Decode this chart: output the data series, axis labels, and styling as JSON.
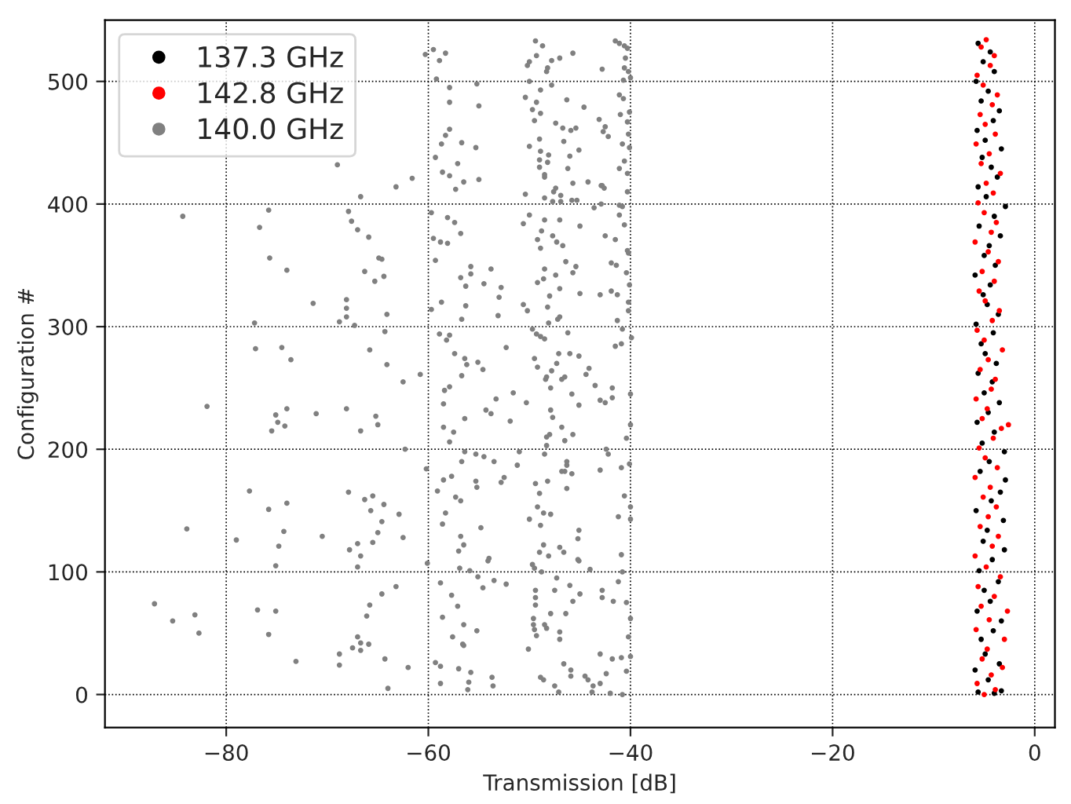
{
  "chart_data": {
    "type": "scatter",
    "xlabel": "Transmission [dB]",
    "ylabel": "Configuration #",
    "xlim": [
      -92,
      2
    ],
    "ylim": [
      -27,
      550
    ],
    "xticks": [
      {
        "value": -80,
        "label": "−80"
      },
      {
        "value": -60,
        "label": "−60"
      },
      {
        "value": -40,
        "label": "−40"
      },
      {
        "value": -20,
        "label": "−20"
      },
      {
        "value": 0,
        "label": "0"
      }
    ],
    "yticks": [
      0,
      100,
      200,
      300,
      400,
      500
    ],
    "grid": true,
    "legend": "top left",
    "marker": "circle",
    "series": [
      {
        "name": "137.3 GHz",
        "color": "#000000",
        "x": [
          -5.6,
          -4.0,
          -3.3,
          -4.6,
          -5.9,
          -3.5,
          -4.9,
          -5.3,
          -4.1,
          -3.3,
          -5.7,
          -4.4,
          -5.0,
          -3.6,
          -5.5,
          -4.2,
          -3.0,
          -5.1,
          -4.7,
          -3.1,
          -5.8,
          -4.3,
          -3.4,
          -2.9,
          -5.4,
          -4.5,
          -3.0,
          -5.2,
          -4.0,
          -5.7,
          -4.6,
          -3.5,
          -5.0,
          -4.2,
          -5.6,
          -3.8,
          -4.9,
          -5.3,
          -4.1,
          -5.8,
          -3.6,
          -4.7,
          -5.1,
          -4.4,
          -5.9,
          -3.9,
          -5.0,
          -4.5,
          -3.4,
          -5.5,
          -4.0,
          -2.9,
          -4.8,
          -5.6,
          -3.7,
          -4.3,
          -5.2,
          -3.3,
          -4.9,
          -5.7,
          -4.1,
          -3.5,
          -5.3,
          -4.6,
          -5.8,
          -4.0,
          -5.1,
          -4.4,
          -5.6
        ],
        "values": [
          2,
          1,
          3,
          12,
          20,
          25,
          33,
          45,
          52,
          60,
          68,
          76,
          85,
          92,
          101,
          110,
          118,
          125,
          134,
          142,
          150,
          158,
          165,
          175,
          182,
          190,
          198,
          205,
          214,
          222,
          230,
          238,
          246,
          255,
          262,
          270,
          278,
          286,
          295,
          302,
          310,
          318,
          326,
          334,
          342,
          350,
          358,
          366,
          374,
          382,
          390,
          398,
          406,
          414,
          422,
          430,
          438,
          445,
          452,
          460,
          468,
          476,
          484,
          492,
          500,
          508,
          516,
          524,
          531
        ]
      },
      {
        "name": "142.8 GHz",
        "color": "#ff0000",
        "x": [
          -5.0,
          -3.9,
          -5.7,
          -4.3,
          -3.2,
          -5.2,
          -4.7,
          -3.0,
          -5.8,
          -4.5,
          -2.7,
          -5.3,
          -4.0,
          -5.6,
          -3.4,
          -4.8,
          -5.9,
          -4.2,
          -3.6,
          -5.4,
          -4.6,
          -3.8,
          -5.1,
          -4.4,
          -5.9,
          -3.7,
          -4.9,
          -5.5,
          -4.1,
          -3.3,
          -5.2,
          -4.7,
          -2.6,
          -5.8,
          -4.3,
          -3.9,
          -5.4,
          -4.6,
          -3.2,
          -5.0,
          -5.7,
          -4.2,
          -3.5,
          -4.9,
          -5.5,
          -4.0,
          -5.2,
          -3.6,
          -4.6,
          -5.9,
          -4.3,
          -3.8,
          -5.0,
          -5.6,
          -4.1,
          -4.8,
          -3.4,
          -5.3,
          -4.5,
          -5.8,
          -3.9,
          -4.9,
          -5.4,
          -4.2,
          -3.7,
          -5.1,
          -5.7,
          -4.4,
          -4.0,
          -5.3,
          -4.8
        ],
        "values": [
          0,
          4,
          9,
          16,
          22,
          29,
          37,
          45,
          53,
          61,
          68,
          72,
          80,
          88,
          96,
          104,
          113,
          121,
          129,
          137,
          145,
          153,
          161,
          169,
          177,
          185,
          193,
          201,
          209,
          217,
          225,
          233,
          220,
          241,
          249,
          257,
          265,
          273,
          281,
          289,
          297,
          305,
          313,
          321,
          329,
          337,
          345,
          353,
          361,
          369,
          377,
          385,
          393,
          401,
          409,
          417,
          425,
          433,
          441,
          449,
          457,
          465,
          473,
          481,
          489,
          497,
          505,
          513,
          521,
          528,
          534
        ]
      },
      {
        "name": "140.0 GHz",
        "color": "#808080",
        "x": [
          -87.1,
          -85.3,
          -83.1,
          -82.7,
          -83.9,
          -81.9,
          -84.3,
          -77.2,
          -77.1,
          -75.8,
          -76.7,
          -75.7,
          -74.0,
          -74.5,
          -73.6,
          -75.1,
          -74.9,
          -75.5,
          -74.2,
          -74.0,
          -71.1,
          -68.1,
          -65.2,
          -65.0,
          -66.7,
          -62.3,
          -77.7,
          -75.8,
          -74.0,
          -79.0,
          -74.3,
          -74.8,
          -75.1,
          -70.5,
          -67.9,
          -66.3,
          -65.5,
          -65.7,
          -64.4,
          -64.6,
          -65.0,
          -65.5,
          -67.0,
          -67.8,
          -66.7,
          -67.0,
          -62.9,
          -62.5,
          -76.9,
          -75.1,
          -75.8,
          -73.1,
          -68.8,
          -68.8,
          -67.5,
          -66.7,
          -65.9,
          -66.7,
          -67.0,
          -66.1,
          -65.8,
          -64.6,
          -63.2,
          -64.3,
          -64.0,
          -62.0,
          -69.0,
          -66.7,
          -63.2,
          -61.6,
          -67.9,
          -67.6,
          -67.0,
          -65.9,
          -64.9,
          -64.6,
          -66.3,
          -65.3,
          -64.4,
          -68.1,
          -68.1,
          -68.1,
          -68.8,
          -67.3,
          -64.1,
          -64.3,
          -71.4,
          -65.8,
          -64.1,
          -62.5,
          -60.8,
          -60.3,
          -59.5,
          -58.9,
          -58.3,
          -59.2,
          -57.9,
          -57.9,
          -55.2,
          -55.0,
          -57.9,
          -58.3,
          -58.7,
          -59.3,
          -56.7,
          -55.3,
          -58.6,
          -57.9,
          -57.1,
          -57.3,
          -56.5,
          -55.0,
          -59.7,
          -58.1,
          -57.4,
          -56.8,
          -59.5,
          -58.8,
          -58.1,
          -59.3,
          -55.8,
          -55.8,
          -56.8,
          -56.3,
          -54.5,
          -53.8,
          -52.8,
          -53.0,
          -56.3,
          -56.7,
          -53.1,
          -59.7,
          -58.7,
          -58.9,
          -57.9,
          -58.2,
          -57.4,
          -56.4,
          -56.2,
          -55.1,
          -54.6,
          -56.7,
          -52.3,
          -57.9,
          -58.4,
          -58.5,
          -53.3,
          -54.3,
          -53.8,
          -56.4,
          -58.5,
          -57.5,
          -57.9,
          -51.9,
          -51.6,
          -50.3,
          -56.4,
          -55.3,
          -54.5,
          -53.5,
          -56.7,
          -60.2,
          -58.5,
          -57.7,
          -55.3,
          -55.2,
          -52.8,
          -52.5,
          -51.2,
          -51.0,
          -59.1,
          -57.3,
          -56.8,
          -58.3,
          -58.6,
          -54.8,
          -56.8,
          -56.5,
          -57.0,
          -54.0,
          -54.1,
          -60.1,
          -56.9,
          -55.9,
          -55.1,
          -54.6,
          -53.5,
          -52.3,
          -58.8,
          -57.7,
          -57.1,
          -58.6,
          -56.5,
          -57.6,
          -55.2,
          -56.6,
          -56.5,
          -59.3,
          -58.8,
          -57.0,
          -55.8,
          -58.8,
          -56.0,
          -56.1,
          -53.7,
          -53.6,
          -49.4,
          -48.7,
          -49.3,
          -50.0,
          -50.2,
          -48.2,
          -48.3,
          -47.8,
          -47.0,
          -45.7,
          -50.0,
          -48.9,
          -47.8,
          -50.4,
          -49.3,
          -49.7,
          -48.9,
          -49.5,
          -47.4,
          -46.7,
          -46.3,
          -44.6,
          -45.9,
          -45.4,
          -50.0,
          -49.0,
          -46.6,
          -45.1,
          -48.9,
          -48.1,
          -49.0,
          -48.2,
          -46.0,
          -49.0,
          -48.5,
          -48.5,
          -46.2,
          -45.7,
          -47.4,
          -47.6,
          -50.4,
          -46.9,
          -48.5,
          -47.7,
          -46.9,
          -45.8,
          -45.3,
          -44.2,
          -42.9,
          -42.6,
          -50.6,
          -50.0,
          -48.5,
          -47.0,
          -49.2,
          -48.8,
          -48.9,
          -47.7,
          -47.3,
          -46.7,
          -45.0,
          -48.5,
          -48.6,
          -49.2,
          -47.4,
          -46.4,
          -45.7,
          -45.4,
          -47.0,
          -48.0,
          -48.2,
          -50.6,
          -50.2,
          -47.2,
          -47.0,
          -48.1,
          -45.0,
          -46.2,
          -49.7,
          -49.3,
          -48.9,
          -48.5,
          -49.5,
          -49.2,
          -48.4,
          -48.3,
          -47.8,
          -47.3,
          -47.1,
          -46.8,
          -46.5,
          -47.9,
          -46.0,
          -45.1,
          -44.4,
          -44.1,
          -45.8,
          -45.1,
          -47.9,
          -47.7,
          -46.8,
          -48.0,
          -48.3,
          -48.3,
          -45.7,
          -46.5,
          -48.5,
          -46.3,
          -46.3,
          -46.5,
          -46.8,
          -45.8,
          -48.2,
          -49.4,
          -46.3,
          -49.0,
          -49.2,
          -48.6,
          -47.9,
          -50.0,
          -48.9,
          -45.1,
          -45.2,
          -48.6,
          -49.0,
          -48.1,
          -47.0,
          -46.6,
          -45.2,
          -45.1,
          -49.7,
          -49.5,
          -48.8,
          -47.3,
          -46.0,
          -49.4,
          -49.4,
          -47.5,
          -45.7,
          -45.0,
          -49.4,
          -49.6,
          -49.6,
          -48.5,
          -47.9,
          -46.4,
          -47.0,
          -49.5,
          -48.3,
          -49.3,
          -50.1,
          -47.0,
          -46.6,
          -45.9,
          -45.9,
          -48.9,
          -48.6,
          -47.5,
          -47.1,
          -44.5,
          -44.2,
          -43.7,
          -43.8,
          -43.0,
          -42.0,
          -43.0,
          -41.8,
          -41.5,
          -41.1,
          -40.6,
          -40.3,
          -40.5,
          -40.6,
          -40.2,
          -40.0,
          -40.7,
          -42.8,
          -41.1,
          -40.7,
          -41.0,
          -40.1,
          -40.3,
          -43.1,
          -42.5,
          -42.7,
          -42.2,
          -40.2,
          -40.8,
          -40.1,
          -40.6,
          -41.1,
          -40.3,
          -40.3,
          -42.8,
          -41.1,
          -40.8,
          -43.6,
          -42.9,
          -41.1,
          -40.6,
          -42.5,
          -41.5,
          -40.3,
          -40.2,
          -41.9,
          -41.4,
          -40.4,
          -40.1,
          -41.9,
          -41.3,
          -43.0,
          -40.2,
          -40.2,
          -41.3,
          -40.8,
          -40.9,
          -41.5,
          -39.9,
          -40.0,
          -41.8,
          -41.8,
          -43.0,
          -42.5,
          -43.5,
          -40.4,
          -40.0,
          -42.4,
          -42.2,
          -40.9,
          -40.1,
          -43.0,
          -40.6,
          -40.0,
          -41.2,
          -40.0,
          -40.9,
          -41.2,
          -40.8,
          -42.8,
          -42.8,
          -41.7,
          -40.4,
          -40.0,
          -40.2,
          -40.0,
          -40.9,
          -40.4,
          -40.8,
          -44.0,
          -42.4
        ],
        "values": [
          74,
          60,
          65,
          50,
          135,
          235,
          390,
          303,
          282,
          395,
          381,
          356,
          346,
          283,
          273,
          228,
          222,
          215,
          219,
          233,
          229,
          233,
          227,
          220,
          215,
          200,
          166,
          151,
          156,
          126,
          133,
          121,
          105,
          129,
          165,
          159,
          162,
          150,
          155,
          141,
          132,
          124,
          123,
          118,
          113,
          104,
          147,
          128,
          69,
          68,
          49,
          27,
          33,
          24,
          38,
          42,
          41,
          36,
          47,
          64,
          73,
          82,
          88,
          29,
          5,
          22,
          432,
          406,
          414,
          421,
          394,
          386,
          379,
          373,
          356,
          355,
          345,
          337,
          341,
          322,
          315,
          308,
          304,
          301,
          310,
          296,
          319,
          281,
          269,
          255,
          261,
          522,
          526,
          517,
          523,
          502,
          495,
          483,
          498,
          480,
          461,
          456,
          449,
          438,
          450,
          446,
          426,
          423,
          433,
          412,
          418,
          420,
          393,
          389,
          385,
          376,
          372,
          369,
          368,
          354,
          349,
          343,
          340,
          333,
          335,
          347,
          332,
          324,
          317,
          306,
          309,
          314,
          320,
          294,
          293,
          289,
          278,
          274,
          269,
          271,
          265,
          260,
          283,
          251,
          248,
          237,
          241,
          232,
          229,
          225,
          218,
          214,
          206,
          223,
          246,
          238,
          198,
          196,
          194,
          190,
          190,
          184,
          175,
          178,
          174,
          169,
          173,
          177,
          187,
          198,
          166,
          161,
          158,
          148,
          139,
          136,
          129,
          122,
          117,
          111,
          109,
          107,
          103,
          101,
          96,
          87,
          93,
          90,
          91,
          81,
          72,
          63,
          57,
          47,
          52,
          41,
          40,
          26,
          23,
          21,
          18,
          9,
          10,
          4,
          14,
          7,
          533,
          529,
          521,
          516,
          513,
          511,
          508,
          517,
          519,
          523,
          500,
          493,
          497,
          487,
          483,
          477,
          474,
          468,
          466,
          462,
          485,
          479,
          460,
          462,
          447,
          453,
          451,
          444,
          443,
          440,
          436,
          434,
          439,
          430,
          424,
          422,
          429,
          417,
          413,
          410,
          408,
          407,
          405,
          402,
          402,
          403,
          403,
          418,
          415,
          413,
          384,
          391,
          387,
          387,
          371,
          378,
          364,
          374,
          369,
          366,
          382,
          347,
          339,
          336,
          342,
          353,
          344,
          349,
          331,
          325,
          316,
          318,
          313,
          306,
          308,
          303,
          327,
          295,
          298,
          294,
          292,
          290,
          274,
          267,
          257,
          259,
          264,
          270,
          278,
          257,
          259,
          250,
          278,
          276,
          261,
          266,
          245,
          236,
          232,
          226,
          218,
          212,
          210,
          203,
          212,
          207,
          196,
          190,
          187,
          182,
          182,
          180,
          174,
          172,
          168,
          164,
          153,
          148,
          147,
          143,
          138,
          134,
          127,
          122,
          116,
          113,
          120,
          116,
          110,
          109,
          106,
          103,
          100,
          95,
          89,
          85,
          79,
          85,
          76,
          82,
          73,
          62,
          57,
          57,
          66,
          66,
          51,
          53,
          54,
          48,
          37,
          45,
          25,
          20,
          15,
          14,
          12,
          7,
          2,
          15,
          12,
          7,
          2,
          9,
          1,
          33,
          29,
          533,
          531,
          529,
          527,
          519,
          511,
          508,
          503,
          501,
          510,
          489,
          486,
          473,
          475,
          467,
          469,
          463,
          459,
          455,
          457,
          449,
          446,
          435,
          429,
          425,
          410,
          415,
          399,
          398,
          397,
          400,
          391,
          383,
          374,
          371,
          362,
          360,
          352,
          350,
          344,
          334,
          329,
          326,
          326,
          320,
          313,
          305,
          298,
          286,
          284,
          291,
          245,
          250,
          242,
          240,
          238,
          252,
          209,
          220,
          200,
          196,
          185,
          188,
          183,
          162,
          153,
          145,
          143,
          114,
          92,
          100,
          85,
          79,
          76,
          75,
          62,
          47,
          31,
          30,
          19,
          0,
          102,
          17
        ]
      }
    ]
  }
}
